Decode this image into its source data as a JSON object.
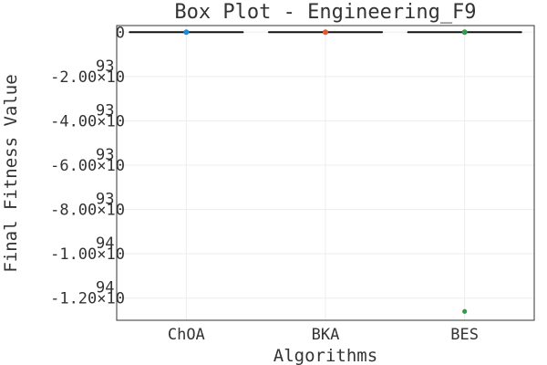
{
  "chart_data": {
    "type": "box",
    "title": "Box Plot - Engineering_F9",
    "xlabel": "Algorithms",
    "ylabel": "Final Fitness Value",
    "categories": [
      "ChOA",
      "BKA",
      "BES"
    ],
    "series": [
      {
        "category": "ChOA",
        "median": 0,
        "q1": 0,
        "q3": 0,
        "whisker_low": 0,
        "whisker_high": 0,
        "mean": 0,
        "outliers": [],
        "color": "#1f8bd9"
      },
      {
        "category": "BKA",
        "median": 0,
        "q1": 0,
        "q3": 0,
        "whisker_low": 0,
        "whisker_high": 0,
        "mean": 0,
        "outliers": [],
        "color": "#e05a2b"
      },
      {
        "category": "BES",
        "median": 0,
        "q1": 0,
        "q3": 0,
        "whisker_low": 0,
        "whisker_high": 0,
        "mean": 0,
        "outliers": [
          -1.26e+94
        ],
        "color": "#2e9e4a"
      }
    ],
    "ylim": [
      -1.3e+94,
      3e+92
    ],
    "y_ticks": [
      {
        "value": 0,
        "mantissa": "0",
        "times": "",
        "exponent": ""
      },
      {
        "value": -2e+93,
        "mantissa": "-2.00",
        "times": "×10",
        "exponent": "93"
      },
      {
        "value": -4e+93,
        "mantissa": "-4.00",
        "times": "×10",
        "exponent": "93"
      },
      {
        "value": -6e+93,
        "mantissa": "-6.00",
        "times": "×10",
        "exponent": "93"
      },
      {
        "value": -8e+93,
        "mantissa": "-8.00",
        "times": "×10",
        "exponent": "93"
      },
      {
        "value": -1e+94,
        "mantissa": "-1.00",
        "times": "×10",
        "exponent": "94"
      },
      {
        "value": -1.2e+94,
        "mantissa": "-1.20",
        "times": "×10",
        "exponent": "94"
      }
    ],
    "grid": true,
    "legend": "none"
  }
}
